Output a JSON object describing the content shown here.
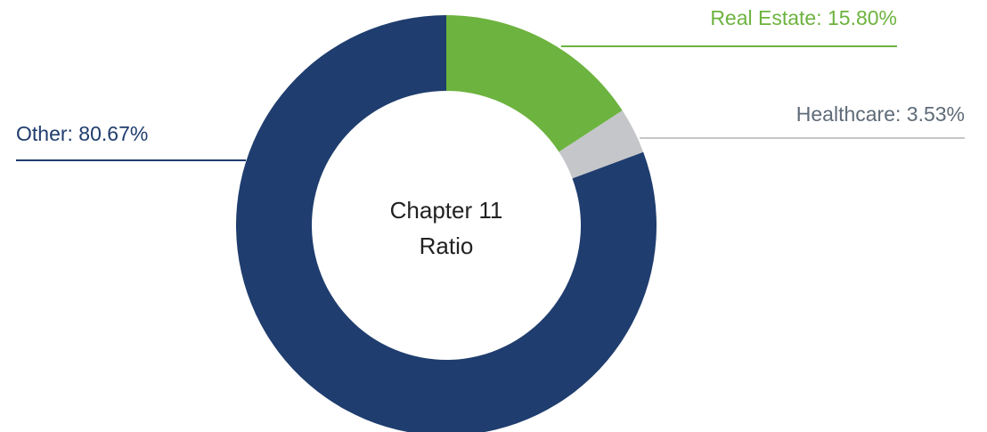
{
  "chart_data": {
    "type": "donut",
    "center_text": [
      "Chapter 11",
      "Ratio"
    ],
    "categories": [
      "Real Estate",
      "Healthcare",
      "Other"
    ],
    "values": [
      15.8,
      3.53,
      80.67
    ],
    "value_labels": [
      "Real Estate: 15.80%",
      "Healthcare: 3.53%",
      "Other: 80.67%"
    ],
    "colors": [
      "#6db33f",
      "#c4c6c9",
      "#1f3d6e"
    ]
  }
}
